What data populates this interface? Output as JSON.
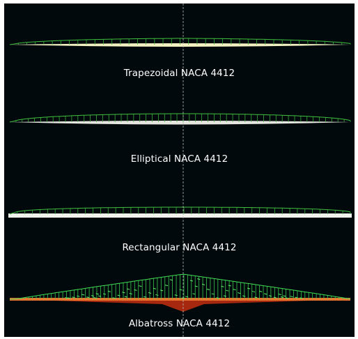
{
  "wings": [
    {
      "label": "Trapezoidal NACA 4412",
      "type": "trapezoidal",
      "surface_color": "#f3f1c2",
      "lift_color": "#3fbf3f"
    },
    {
      "label": "Elliptical NACA 4412",
      "type": "elliptical",
      "surface_color": "#e6e6e0",
      "lift_color": "#3fbf3f"
    },
    {
      "label": "Rectangular NACA 4412",
      "type": "rectangular",
      "surface_color": "#f2f2ec",
      "lift_color": "#3fbf3f"
    },
    {
      "label": "Albatross NACA 4412",
      "type": "albatross",
      "surface_color": "#c9471a",
      "lift_color": "#3fdc55"
    }
  ],
  "background_color": "#02090c",
  "centerline_color": "#b8b8b8"
}
